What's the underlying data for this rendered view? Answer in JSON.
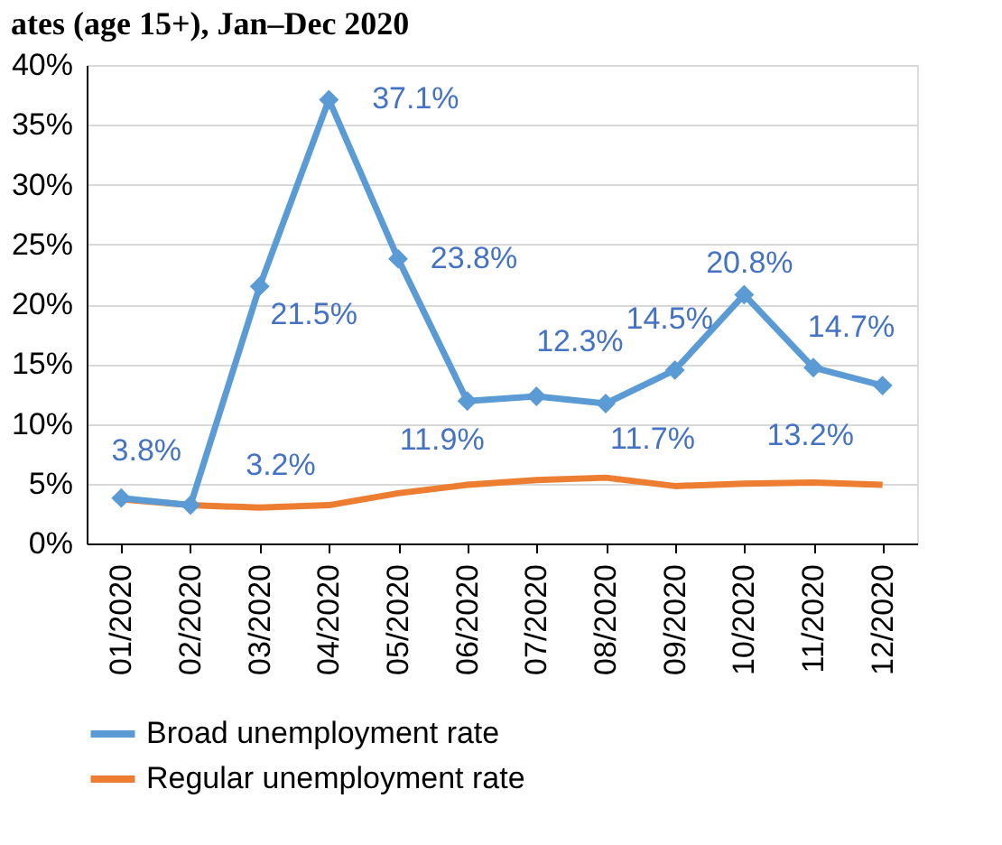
{
  "chart_data": {
    "type": "line",
    "title": "ates (age 15+), Jan–Dec 2020",
    "categories": [
      "01/2020",
      "02/2020",
      "03/2020",
      "04/2020",
      "05/2020",
      "06/2020",
      "07/2020",
      "08/2020",
      "09/2020",
      "10/2020",
      "11/2020",
      "12/2020"
    ],
    "series": [
      {
        "name": "Broad unemployment rate",
        "color": "#5b9bd5",
        "marker": "diamond",
        "values": [
          3.8,
          3.2,
          21.5,
          37.1,
          23.8,
          11.9,
          12.3,
          11.7,
          14.5,
          20.8,
          14.7,
          13.2
        ],
        "value_labels": [
          "3.8%",
          "3.2%",
          "21.5%",
          "37.1%",
          "23.8%",
          "11.9%",
          "12.3%",
          "11.7%",
          "14.5%",
          "20.8%",
          "14.7%",
          "13.2%"
        ]
      },
      {
        "name": "Regular unemployment rate",
        "color": "#ed7d31",
        "marker": "none",
        "values": [
          3.7,
          3.2,
          3.0,
          3.2,
          4.2,
          4.9,
          5.3,
          5.5,
          4.8,
          5.0,
          5.1,
          4.9
        ]
      }
    ],
    "ylim": [
      0,
      40
    ],
    "yticks": [
      {
        "value": 0,
        "label": "0%"
      },
      {
        "value": 5,
        "label": "5%"
      },
      {
        "value": 10,
        "label": "10%"
      },
      {
        "value": 15,
        "label": "15%"
      },
      {
        "value": 20,
        "label": "20%"
      },
      {
        "value": 25,
        "label": "25%"
      },
      {
        "value": 30,
        "label": "30%"
      },
      {
        "value": 35,
        "label": "35%"
      },
      {
        "value": 40,
        "label": "40%"
      }
    ],
    "grid": "y",
    "legend": "bottom",
    "line_style": "solid"
  }
}
